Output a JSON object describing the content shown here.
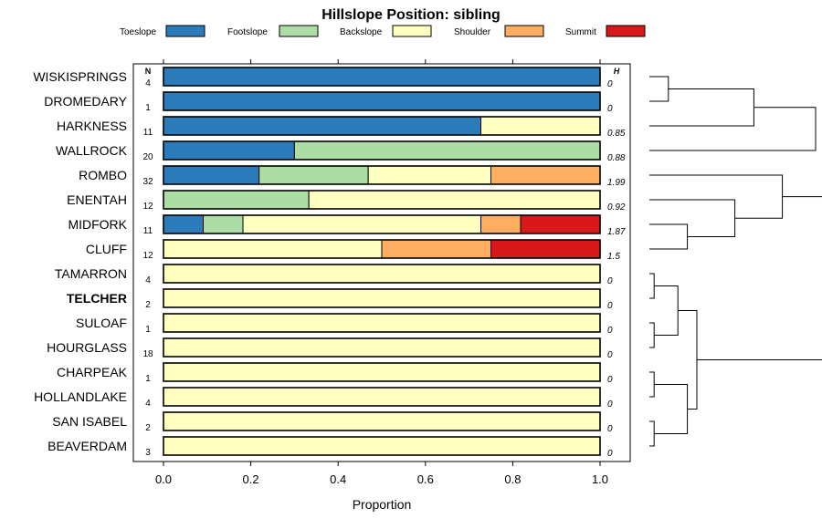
{
  "chart_data": {
    "type": "bar",
    "stacked": true,
    "orientation": "horizontal",
    "title": "Hillslope Position: sibling",
    "xlabel": "Proportion",
    "ylabel": "",
    "xlim": [
      0,
      1
    ],
    "x_ticks": [
      "0.0",
      "0.2",
      "0.4",
      "0.6",
      "0.8",
      "1.0"
    ],
    "n_header": "N",
    "h_header": "H",
    "highlighted_category": "TELCHER",
    "legend": {
      "placement": "top",
      "entries": [
        {
          "name": "Toeslope",
          "color": "#2b7bba"
        },
        {
          "name": "Footslope",
          "color": "#abdda4"
        },
        {
          "name": "Backslope",
          "color": "#ffffbf"
        },
        {
          "name": "Shoulder",
          "color": "#fdae61"
        },
        {
          "name": "Summit",
          "color": "#d7191c"
        }
      ]
    },
    "categories": [
      "WISKISPRINGS",
      "DROMEDARY",
      "HARKNESS",
      "WALLROCK",
      "ROMBO",
      "ENENTAH",
      "MIDFORK",
      "CLUFF",
      "TAMARRON",
      "TELCHER",
      "SULOAF",
      "HOURGLASS",
      "CHARPEAK",
      "HOLLANDLAKE",
      "SAN ISABEL",
      "BEAVERDAM"
    ],
    "n_values": [
      "4",
      "1",
      "11",
      "20",
      "32",
      "12",
      "11",
      "12",
      "4",
      "2",
      "1",
      "18",
      "1",
      "4",
      "2",
      "3"
    ],
    "h_values": [
      "0",
      "0",
      "0.85",
      "0.88",
      "1.99",
      "0.92",
      "1.87",
      "1.5",
      "0",
      "0",
      "0",
      "0",
      "0",
      "0",
      "0",
      "0"
    ],
    "series": [
      {
        "name": "Toeslope",
        "values": [
          1,
          1,
          0.727,
          0.3,
          0.219,
          0,
          0.091,
          0,
          0,
          0,
          0,
          0,
          0,
          0,
          0,
          0
        ]
      },
      {
        "name": "Footslope",
        "values": [
          0,
          0,
          0,
          0.7,
          0.25,
          0.333,
          0.091,
          0,
          0,
          0,
          0,
          0,
          0,
          0,
          0,
          0
        ]
      },
      {
        "name": "Backslope",
        "values": [
          0,
          0,
          0.273,
          0,
          0.281,
          0.667,
          0.545,
          0.5,
          1,
          1,
          1,
          1,
          1,
          1,
          1,
          1
        ]
      },
      {
        "name": "Shoulder",
        "values": [
          0,
          0,
          0,
          0,
          0.25,
          0,
          0.091,
          0.25,
          0,
          0,
          0,
          0,
          0,
          0,
          0,
          0
        ]
      },
      {
        "name": "Summit",
        "values": [
          0,
          0,
          0,
          0,
          0,
          0,
          0.182,
          0.25,
          0,
          0,
          0,
          0,
          0,
          0,
          0,
          0
        ]
      }
    ],
    "dendrogram": {
      "side": "right",
      "description": "Hierarchical clustering of rows",
      "merges": [
        [
          0,
          1,
          0.04
        ],
        [
          -1,
          2,
          0.22
        ],
        [
          -2,
          3,
          0.35
        ],
        [
          6,
          7,
          0.08
        ],
        [
          5,
          -4,
          0.18
        ],
        [
          4,
          -5,
          0.28
        ],
        [
          8,
          9,
          0.01
        ],
        [
          10,
          11,
          0.01
        ],
        [
          12,
          13,
          0.01
        ],
        [
          14,
          15,
          0.01
        ],
        [
          -7,
          -8,
          0.06
        ],
        [
          -9,
          -10,
          0.08
        ],
        [
          -11,
          -12,
          0.1
        ],
        [
          -6,
          -13,
          0.42
        ]
      ]
    }
  }
}
